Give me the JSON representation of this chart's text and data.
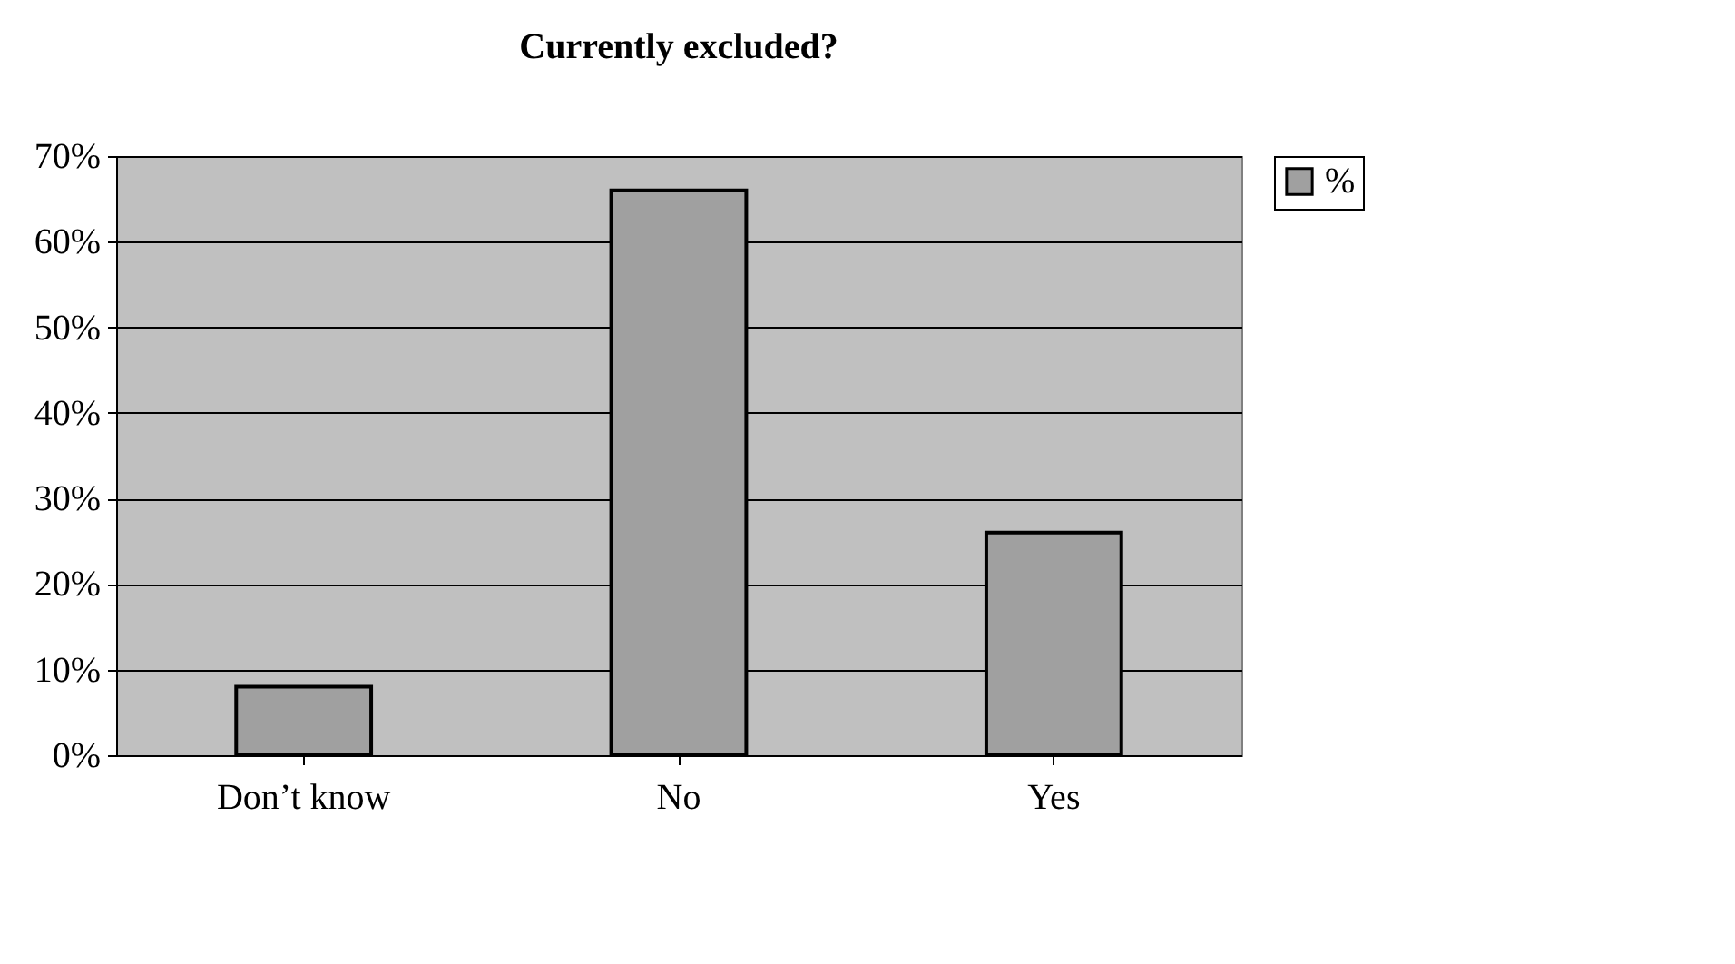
{
  "chart_data": {
    "type": "bar",
    "title": "Currently excluded?",
    "categories": [
      "Don’t know",
      "No",
      "Yes"
    ],
    "series": [
      {
        "name": "%",
        "color": "#a0a0a0",
        "values": [
          8,
          66,
          26
        ]
      }
    ],
    "ylim": [
      0,
      70
    ],
    "yticks": [
      {
        "value": 0,
        "label": "0%"
      },
      {
        "value": 10,
        "label": "10%"
      },
      {
        "value": 20,
        "label": "20%"
      },
      {
        "value": 30,
        "label": "30%"
      },
      {
        "value": 40,
        "label": "40%"
      },
      {
        "value": 50,
        "label": "50%"
      },
      {
        "value": 60,
        "label": "60%"
      },
      {
        "value": 70,
        "label": "70%"
      }
    ],
    "grid": "y",
    "legend": "right"
  }
}
